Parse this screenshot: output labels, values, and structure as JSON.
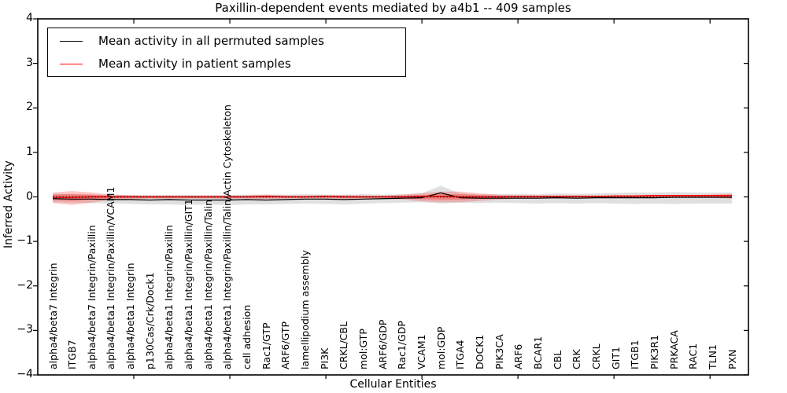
{
  "chart_data": {
    "type": "line",
    "title": "Paxillin-dependent events mediated by a4b1 -- 409 samples",
    "xlabel": "Cellular Entities",
    "ylabel": "Inferred Activity",
    "ylim": [
      -4,
      4
    ],
    "yticks": [
      4,
      3,
      2,
      1,
      0,
      -1,
      -2,
      -3,
      -4
    ],
    "ytick_labels": [
      "4",
      "3",
      "2",
      "1",
      "0",
      "−1",
      "−2",
      "−3",
      "−4"
    ],
    "grid": false,
    "legend_position": "upper-left",
    "categories": [
      "alpha4/beta7 Integrin",
      "ITGB7",
      "alpha4/beta7 Integrin/Paxillin",
      "alpha4/beta1 Integrin/Paxillin/VCAM1",
      "alpha4/beta1 Integrin",
      "p130Cas/Crk/Dock1",
      "alpha4/beta1 Integrin/Paxillin",
      "alpha4/beta1 Integrin/Paxillin/GIT1",
      "alpha4/beta1 Integrin/Paxillin/Talin",
      "alpha4/beta1 Integrin/Paxillin/Talin/Actin Cytoskeleton",
      "cell adhesion",
      "Rac1/GTP",
      "ARF6/GTP",
      "lamellipodium assembly",
      "PI3K",
      "CRKL/CBL",
      "mol:GTP",
      "ARF6/GDP",
      "Rac1/GDP",
      "VCAM1",
      "mol:GDP",
      "ITGA4",
      "DOCK1",
      "PIK3CA",
      "ARF6",
      "BCAR1",
      "CBL",
      "CRK",
      "CRKL",
      "GIT1",
      "ITGB1",
      "PIK3R1",
      "PRKACA",
      "RAC1",
      "TLN1",
      "PXN"
    ],
    "series": [
      {
        "name": "Mean activity in all permuted samples",
        "color": "#000000",
        "style": "solid",
        "values": [
          -0.04,
          -0.05,
          -0.05,
          -0.06,
          -0.06,
          -0.07,
          -0.06,
          -0.07,
          -0.07,
          -0.07,
          -0.06,
          -0.07,
          -0.06,
          -0.05,
          -0.05,
          -0.06,
          -0.05,
          -0.04,
          -0.03,
          -0.02,
          0.09,
          -0.02,
          -0.03,
          -0.03,
          -0.03,
          -0.03,
          -0.02,
          -0.03,
          -0.02,
          -0.02,
          -0.02,
          -0.02,
          -0.01,
          -0.01,
          -0.01,
          -0.01
        ]
      },
      {
        "name": "Mean activity in patient samples",
        "color": "#ff0000",
        "style": "solid",
        "values": [
          -0.01,
          -0.01,
          0,
          0,
          0,
          0,
          0,
          0,
          0,
          0,
          0,
          0.01,
          0,
          0,
          0.01,
          0,
          0,
          0,
          0,
          0.01,
          0.01,
          0,
          0,
          0,
          0.01,
          0.01,
          0.01,
          0.01,
          0.01,
          0.02,
          0.02,
          0.03,
          0.03,
          0.03,
          0.03,
          0.03
        ]
      }
    ],
    "reference_line": {
      "y": 0,
      "color": "#000000",
      "style": "dotted"
    },
    "bands": [
      {
        "name": "permuted-samples-range",
        "color": "rgba(0,0,0,0.12)",
        "hi": [
          0.07,
          0.06,
          0.05,
          0.05,
          0.04,
          0.04,
          0.04,
          0.04,
          0.04,
          0.04,
          0.05,
          0.05,
          0.05,
          0.06,
          0.05,
          0.05,
          0.06,
          0.05,
          0.06,
          0.08,
          0.25,
          0.08,
          0.06,
          0.06,
          0.07,
          0.06,
          0.08,
          0.07,
          0.08,
          0.09,
          0.1,
          0.1,
          0.11,
          0.1,
          0.1,
          0.1
        ],
        "lo": [
          -0.12,
          -0.13,
          -0.14,
          -0.15,
          -0.16,
          -0.17,
          -0.17,
          -0.18,
          -0.17,
          -0.18,
          -0.17,
          -0.17,
          -0.16,
          -0.15,
          -0.16,
          -0.17,
          -0.15,
          -0.14,
          -0.13,
          -0.12,
          -0.15,
          -0.13,
          -0.14,
          -0.13,
          -0.14,
          -0.15,
          -0.14,
          -0.15,
          -0.14,
          -0.15,
          -0.16,
          -0.15,
          -0.16,
          -0.15,
          -0.15,
          -0.15
        ]
      },
      {
        "name": "patient-samples-range-outer",
        "color": "rgba(255,0,0,0.22)",
        "hi": [
          0.1,
          0.13,
          0.1,
          0.05,
          0.04,
          0.03,
          0.03,
          0.03,
          0.03,
          0.03,
          0.03,
          0.05,
          0.03,
          0.03,
          0.04,
          0.04,
          0.03,
          0.03,
          0.05,
          0.08,
          0.12,
          0.12,
          0.08,
          0.05,
          0.03,
          0.03,
          0.03,
          0.03,
          0.03,
          0.03,
          0.03,
          0.04,
          0.04,
          0.04,
          0.05,
          0.07
        ],
        "lo": [
          -0.14,
          -0.18,
          -0.13,
          -0.06,
          -0.05,
          -0.04,
          -0.04,
          -0.04,
          -0.04,
          -0.04,
          -0.04,
          -0.05,
          -0.04,
          -0.04,
          -0.04,
          -0.05,
          -0.04,
          -0.04,
          -0.06,
          -0.1,
          -0.12,
          -0.12,
          -0.09,
          -0.06,
          -0.04,
          -0.03,
          -0.03,
          -0.02,
          -0.02,
          -0.02,
          -0.02,
          -0.02,
          -0.02,
          -0.02,
          -0.02,
          -0.04
        ]
      },
      {
        "name": "patient-samples-range-inner",
        "color": "rgba(255,0,0,0.28)",
        "hi": [
          0.05,
          0.065,
          0.05,
          0.025,
          0.02,
          0.015,
          0.015,
          0.015,
          0.015,
          0.015,
          0.015,
          0.025,
          0.015,
          0.015,
          0.02,
          0.02,
          0.015,
          0.015,
          0.025,
          0.04,
          0.06,
          0.06,
          0.04,
          0.025,
          0.015,
          0.015,
          0.015,
          0.015,
          0.015,
          0.015,
          0.015,
          0.02,
          0.02,
          0.02,
          0.025,
          0.035
        ],
        "lo": [
          -0.07,
          -0.09,
          -0.065,
          -0.03,
          -0.025,
          -0.02,
          -0.02,
          -0.02,
          -0.02,
          -0.02,
          -0.02,
          -0.025,
          -0.02,
          -0.02,
          -0.02,
          -0.025,
          -0.02,
          -0.02,
          -0.03,
          -0.05,
          -0.06,
          -0.06,
          -0.045,
          -0.03,
          -0.02,
          -0.015,
          -0.015,
          -0.01,
          -0.01,
          -0.01,
          -0.01,
          -0.01,
          -0.01,
          -0.01,
          -0.01,
          -0.02
        ]
      }
    ]
  }
}
